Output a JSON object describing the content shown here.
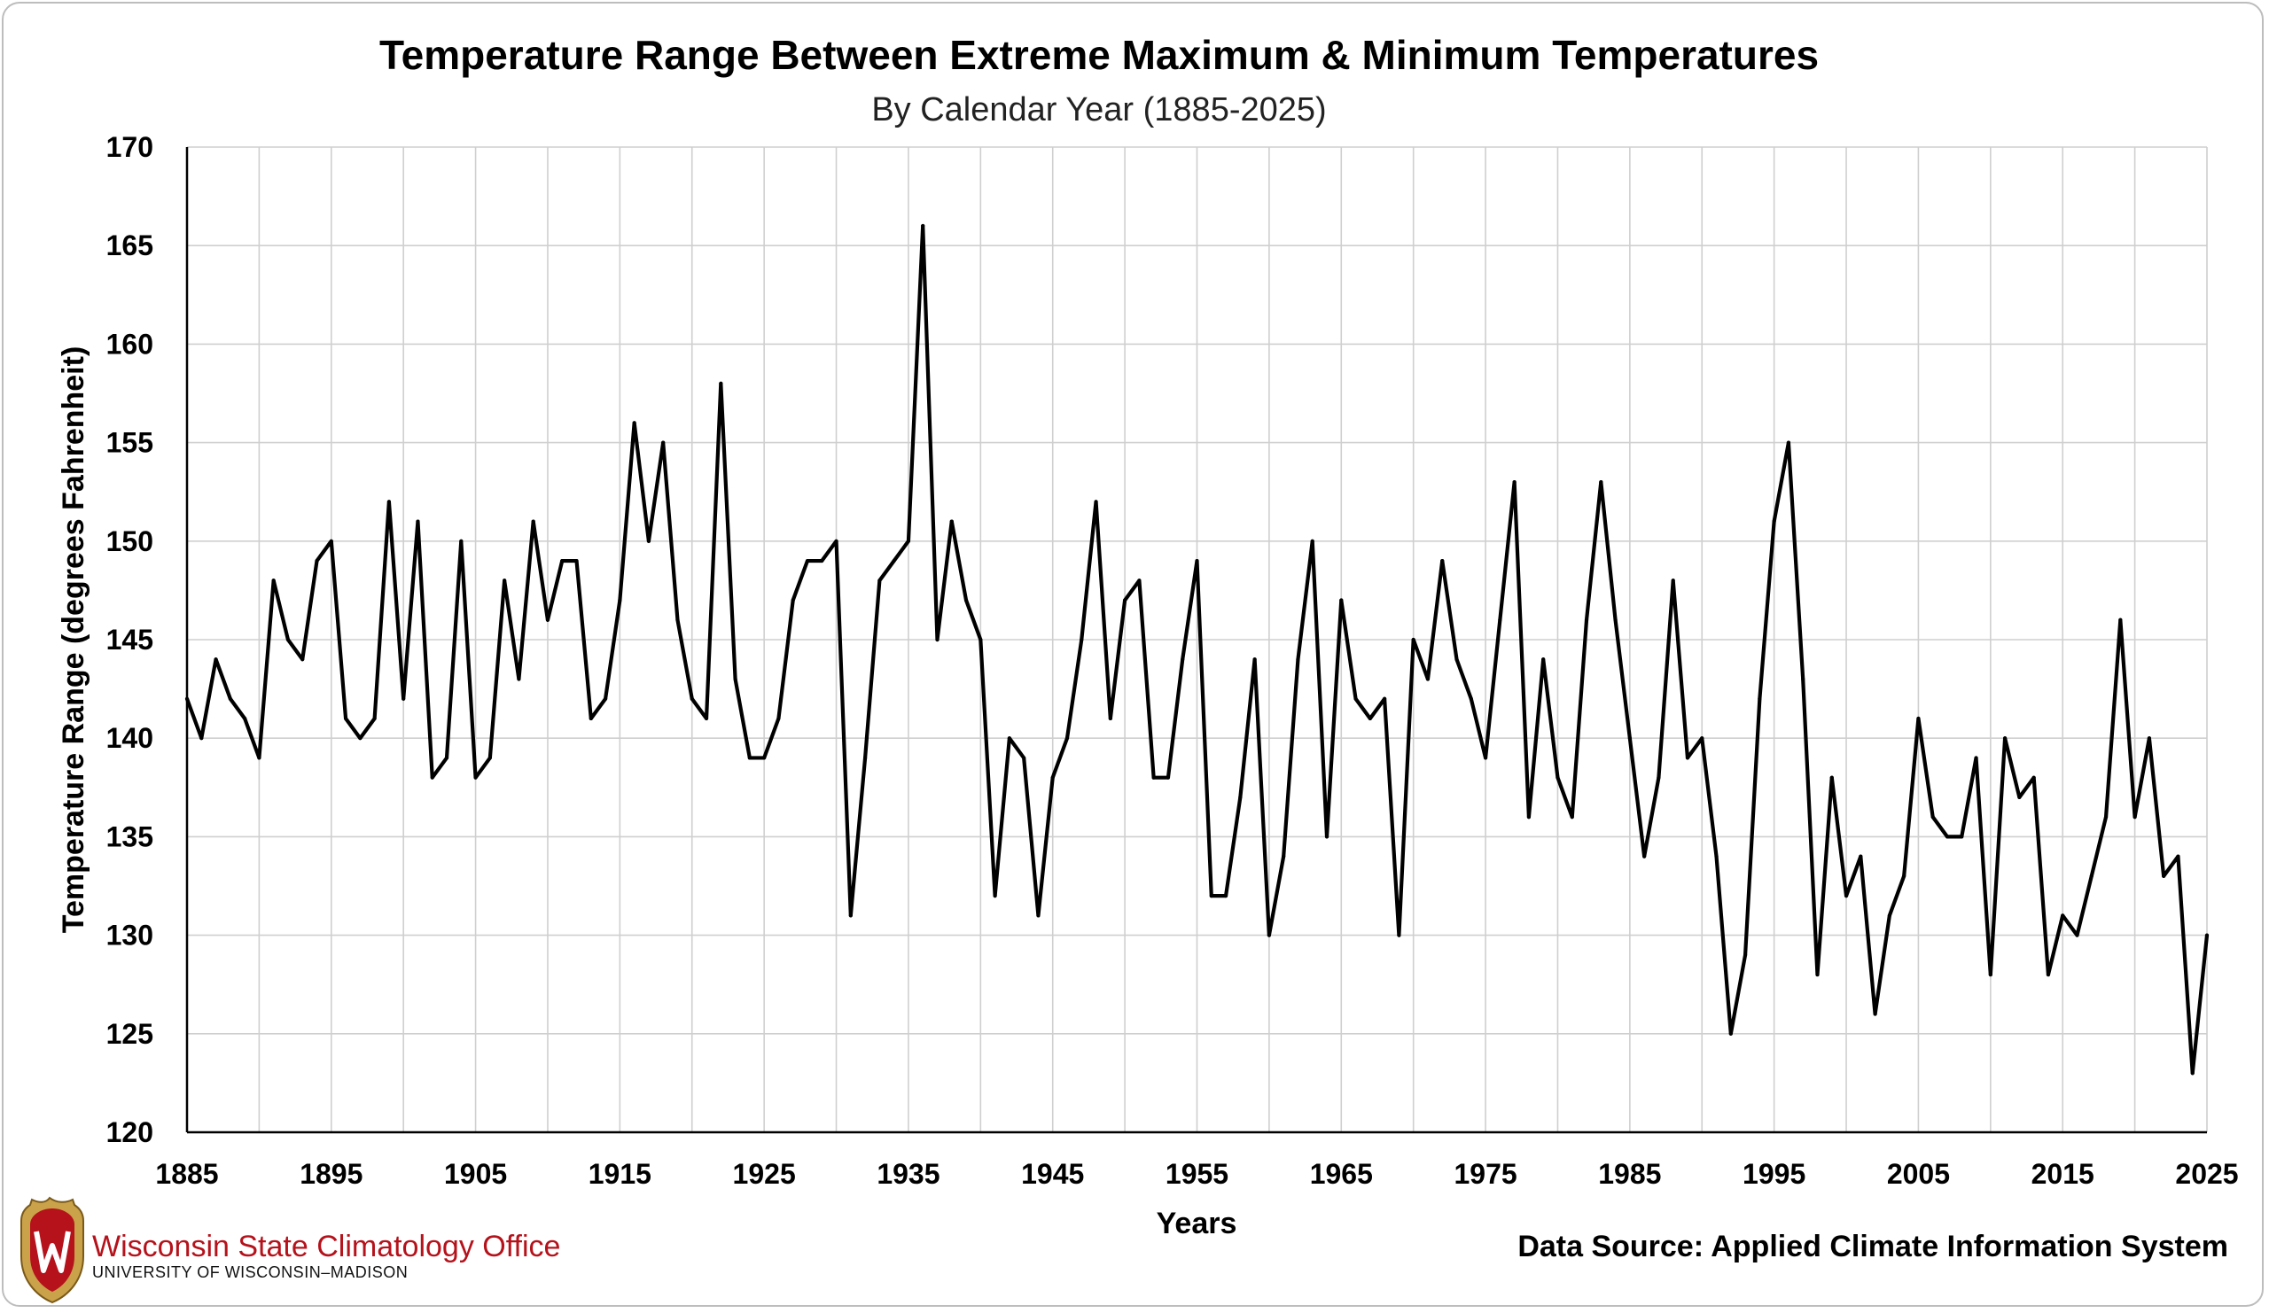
{
  "chart_data": {
    "type": "line",
    "title": "Temperature Range Between Extreme Maximum & Minimum Temperatures",
    "subtitle": "By Calendar Year (1885-2025)",
    "xlabel": "Years",
    "ylabel": "Temperature Range (degrees Fahrenheit)",
    "xlim": [
      1885,
      2025
    ],
    "ylim": [
      120,
      170
    ],
    "xticks": [
      1885,
      1895,
      1905,
      1915,
      1925,
      1935,
      1945,
      1955,
      1965,
      1975,
      1985,
      1995,
      2005,
      2015,
      2025
    ],
    "yticks": [
      120,
      125,
      130,
      135,
      140,
      145,
      150,
      155,
      160,
      165,
      170
    ],
    "grid": true,
    "line_color": "#000000",
    "x": [
      1885,
      1886,
      1887,
      1888,
      1889,
      1890,
      1891,
      1892,
      1893,
      1894,
      1895,
      1896,
      1897,
      1898,
      1899,
      1900,
      1901,
      1902,
      1903,
      1904,
      1905,
      1906,
      1907,
      1908,
      1909,
      1910,
      1911,
      1912,
      1913,
      1914,
      1915,
      1916,
      1917,
      1918,
      1919,
      1920,
      1921,
      1922,
      1923,
      1924,
      1925,
      1926,
      1927,
      1928,
      1929,
      1930,
      1931,
      1932,
      1933,
      1934,
      1935,
      1936,
      1937,
      1938,
      1939,
      1940,
      1941,
      1942,
      1943,
      1944,
      1945,
      1946,
      1947,
      1948,
      1949,
      1950,
      1951,
      1952,
      1953,
      1954,
      1955,
      1956,
      1957,
      1958,
      1959,
      1960,
      1961,
      1962,
      1963,
      1964,
      1965,
      1966,
      1967,
      1968,
      1969,
      1970,
      1971,
      1972,
      1973,
      1974,
      1975,
      1976,
      1977,
      1978,
      1979,
      1980,
      1981,
      1982,
      1983,
      1984,
      1985,
      1986,
      1987,
      1988,
      1989,
      1990,
      1991,
      1992,
      1993,
      1994,
      1995,
      1996,
      1997,
      1998,
      1999,
      2000,
      2001,
      2002,
      2003,
      2004,
      2005,
      2006,
      2007,
      2008,
      2009,
      2010,
      2011,
      2012,
      2013,
      2014,
      2015,
      2016,
      2017,
      2018,
      2019,
      2020,
      2021,
      2022,
      2023,
      2024,
      2025
    ],
    "series": [
      {
        "values": [
          142,
          140,
          144,
          142,
          141,
          139,
          148,
          145,
          144,
          149,
          150,
          141,
          140,
          141,
          152,
          142,
          151,
          138,
          139,
          150,
          138,
          139,
          148,
          143,
          151,
          146,
          149,
          149,
          141,
          142,
          147,
          156,
          150,
          155,
          146,
          142,
          141,
          158,
          143,
          139,
          139,
          141,
          147,
          149,
          149,
          150,
          131,
          139,
          148,
          149,
          150,
          166,
          145,
          151,
          147,
          145,
          132,
          140,
          139,
          131,
          138,
          140,
          145,
          152,
          141,
          147,
          148,
          138,
          138,
          144,
          149,
          132,
          132,
          137,
          144,
          130,
          134,
          144,
          150,
          135,
          147,
          142,
          141,
          142,
          130,
          145,
          143,
          149,
          144,
          142,
          139,
          146,
          153,
          136,
          144,
          138,
          136,
          146,
          153,
          146,
          140,
          134,
          138,
          148,
          139,
          140,
          134,
          125,
          129,
          142,
          151,
          155,
          143,
          128,
          138,
          132,
          134,
          126,
          131,
          133,
          141,
          136,
          135,
          135,
          139,
          128,
          140,
          137,
          138,
          128,
          131,
          130,
          133,
          136,
          146,
          136,
          140,
          133,
          134,
          123,
          130
        ]
      }
    ]
  },
  "organization": {
    "name": "Wisconsin State Climatology Office",
    "subtitle": "UNIVERSITY OF WISCONSIN–MADISON",
    "logo_color": "#b5121b"
  },
  "source_note": "Data Source: Applied Climate Information System"
}
